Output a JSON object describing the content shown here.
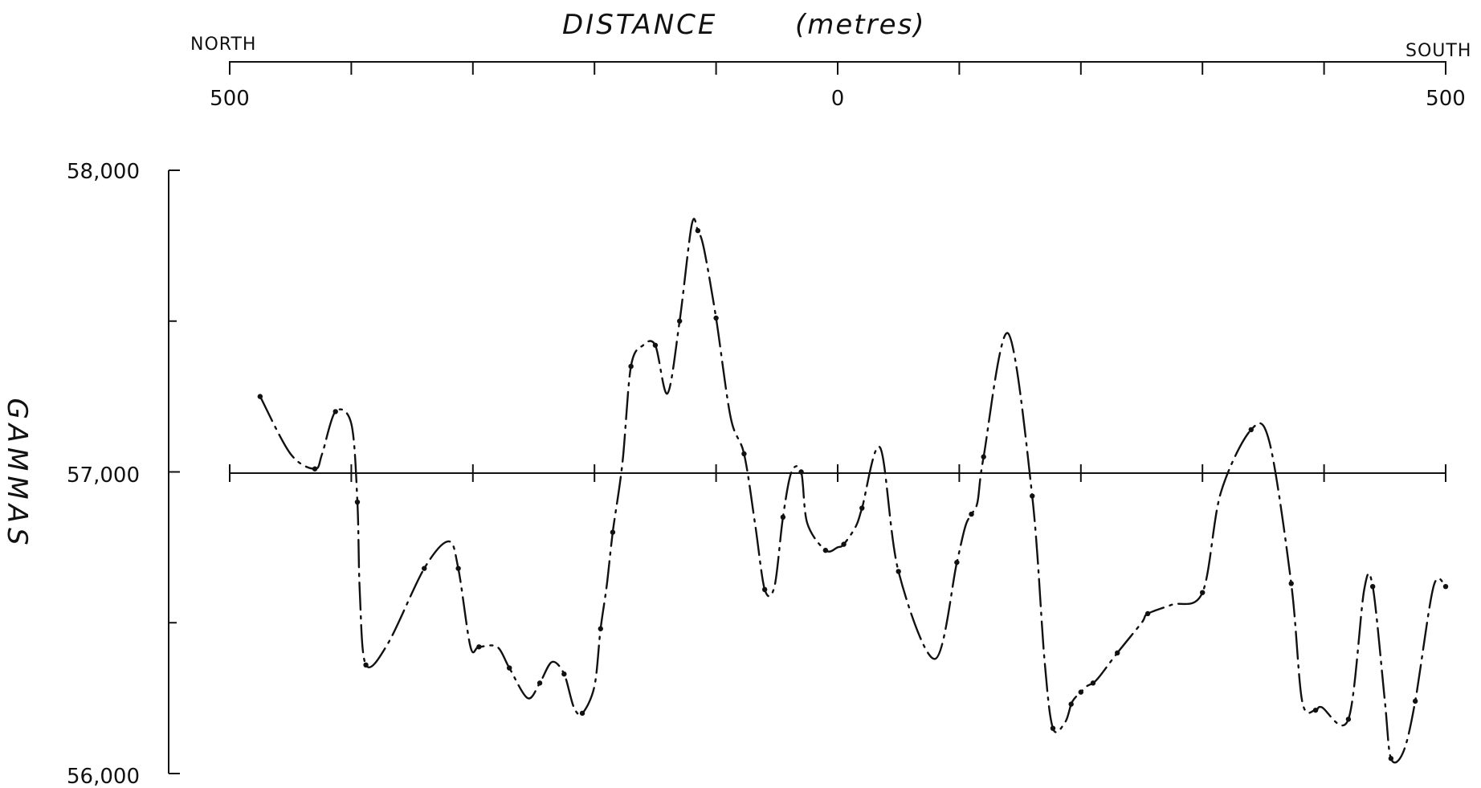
{
  "chart_data": {
    "type": "line",
    "title": "DISTANCE",
    "title_unit": "(metres)",
    "ylabel": "GAMMAS",
    "direction_left": "NORTH",
    "direction_right": "SOUTH",
    "x_tick_labels": {
      "left": "500",
      "center": "0",
      "right": "500"
    },
    "y_tick_labels": [
      "58,000",
      "57,000",
      "56,000"
    ],
    "xlim": [
      -500,
      500
    ],
    "ylim": [
      56000,
      58000
    ],
    "x_tick_values": [
      -500,
      -400,
      -300,
      -200,
      -100,
      0,
      100,
      200,
      300,
      400,
      500
    ],
    "baseline_value": 57000,
    "grid": false,
    "legend": "none",
    "line_style": "dash-dot",
    "series": [
      {
        "x": [
          -475,
          -450,
          -430,
          -424,
          -413,
          -400,
          -395,
          -393,
          -388,
          -370,
          -340,
          -320,
          -312,
          -302,
          -295,
          -280,
          -270,
          -255,
          -245,
          -235,
          -225,
          -217,
          -210,
          -200,
          -195,
          -190,
          -185,
          -177,
          -170,
          -160,
          -150,
          -140,
          -130,
          -120,
          -115,
          -110,
          -100,
          -88,
          -77,
          -68,
          -60,
          -52,
          -45,
          -38,
          -30,
          -25,
          -10,
          0,
          5,
          15,
          20,
          35,
          50,
          80,
          98,
          105,
          110,
          115,
          120,
          140,
          160,
          170,
          177,
          187,
          192,
          195,
          200,
          205,
          210,
          215,
          230,
          250,
          255,
          275,
          300,
          315,
          340,
          355,
          373,
          382,
          393,
          398,
          420,
          433,
          440,
          450,
          455,
          465,
          475,
          490,
          500
        ],
        "y": [
          57250,
          57060,
          57010,
          57060,
          57200,
          57160,
          56900,
          56600,
          56360,
          56430,
          56680,
          56770,
          56680,
          56420,
          56420,
          56420,
          56350,
          56250,
          56300,
          56370,
          56330,
          56220,
          56200,
          56290,
          56480,
          56620,
          56800,
          57030,
          57350,
          57420,
          57420,
          57260,
          57500,
          57820,
          57800,
          57740,
          57510,
          57180,
          57060,
          56830,
          56610,
          56620,
          56850,
          57000,
          57000,
          56830,
          56740,
          56750,
          56760,
          56820,
          56880,
          57080,
          56670,
          56380,
          56700,
          56820,
          56860,
          56900,
          57050,
          57460,
          56920,
          56380,
          56150,
          56170,
          56230,
          56250,
          56270,
          56290,
          56300,
          56320,
          56400,
          56500,
          56530,
          56560,
          56600,
          56930,
          57140,
          57100,
          56630,
          56240,
          56210,
          56220,
          56180,
          56610,
          56620,
          56240,
          56050,
          56070,
          56240,
          56620,
          56620
        ]
      }
    ]
  }
}
